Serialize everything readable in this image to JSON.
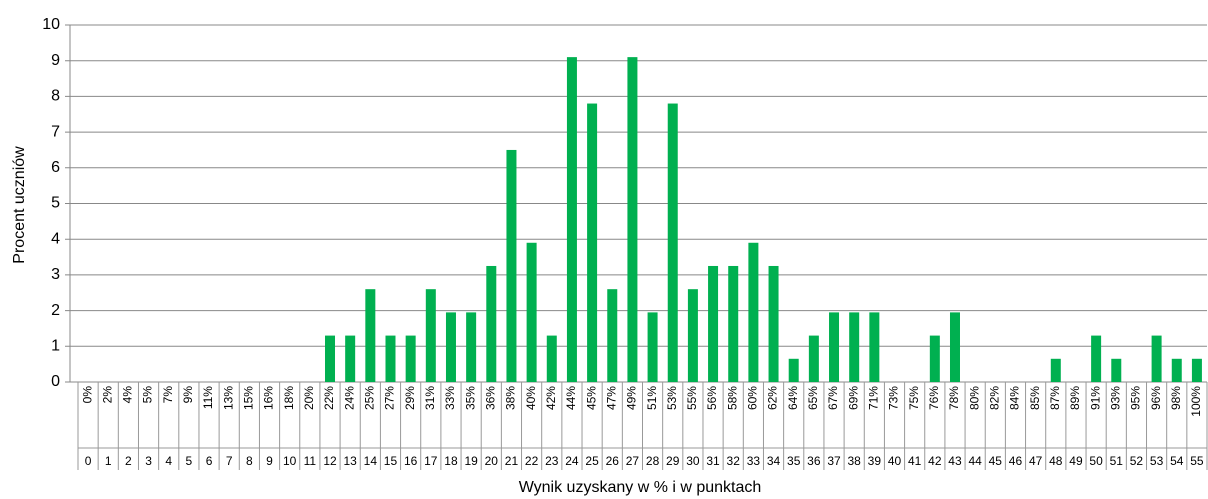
{
  "chart_data": {
    "type": "bar",
    "x_axis_label": "Wynik uzyskany w % i w punktach",
    "y_axis_label": "Procent uczniów",
    "categories": [
      0,
      1,
      2,
      3,
      4,
      5,
      6,
      7,
      8,
      9,
      10,
      11,
      12,
      13,
      14,
      15,
      16,
      17,
      18,
      19,
      20,
      21,
      22,
      23,
      24,
      25,
      26,
      27,
      28,
      29,
      30,
      31,
      32,
      33,
      34,
      35,
      36,
      37,
      38,
      39,
      40,
      41,
      42,
      43,
      44,
      45,
      46,
      47,
      48,
      49,
      50,
      51,
      52,
      53,
      54,
      55
    ],
    "percent_labels": [
      "0%",
      "2%",
      "4%",
      "5%",
      "7%",
      "9%",
      "11%",
      "13%",
      "15%",
      "16%",
      "18%",
      "20%",
      "22%",
      "24%",
      "25%",
      "27%",
      "29%",
      "31%",
      "33%",
      "35%",
      "36%",
      "38%",
      "40%",
      "42%",
      "44%",
      "45%",
      "47%",
      "49%",
      "51%",
      "53%",
      "55%",
      "56%",
      "58%",
      "60%",
      "62%",
      "64%",
      "65%",
      "67%",
      "69%",
      "71%",
      "73%",
      "75%",
      "76%",
      "78%",
      "80%",
      "82%",
      "84%",
      "85%",
      "87%",
      "89%",
      "91%",
      "93%",
      "95%",
      "96%",
      "98%",
      "100%"
    ],
    "values": [
      0,
      0,
      0,
      0,
      0,
      0,
      0,
      0,
      0,
      0,
      0,
      0,
      1.3,
      1.3,
      2.6,
      1.3,
      1.3,
      2.6,
      1.95,
      1.95,
      3.25,
      6.5,
      3.9,
      1.3,
      9.1,
      7.8,
      2.6,
      9.1,
      1.95,
      7.8,
      2.6,
      3.25,
      3.25,
      3.9,
      3.25,
      0.65,
      1.3,
      1.95,
      1.95,
      1.95,
      0,
      0,
      1.3,
      1.95,
      0,
      0,
      0,
      0,
      0.65,
      0,
      1.3,
      0.65,
      0,
      1.3,
      0.65,
      0.65
    ],
    "color": "#00b050",
    "ylim": [
      0,
      10
    ],
    "yticks": [
      0,
      1,
      2,
      3,
      4,
      5,
      6,
      7,
      8,
      9,
      10
    ],
    "grid": true
  }
}
